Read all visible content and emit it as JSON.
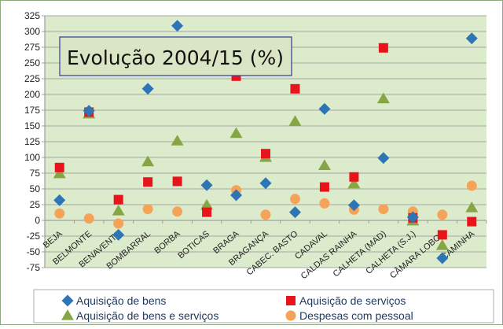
{
  "chart_data": {
    "type": "scatter",
    "title": "Evolução 2004/15 (%)",
    "xlabel": "",
    "ylabel": "",
    "ylim": [
      -75,
      325
    ],
    "y_ticks": [
      -75,
      -50,
      -25,
      0,
      25,
      50,
      75,
      100,
      125,
      150,
      175,
      200,
      225,
      250,
      275,
      300,
      325
    ],
    "grid": true,
    "legend_position": "bottom",
    "categories": [
      "BEJA",
      "BELMONTE",
      "BENAVENTE",
      "BOMBARRAL",
      "BORBA",
      "BOTICAS",
      "BRAGA",
      "BRAGANÇA",
      "CABEC. BASTO",
      "CADAVAL",
      "CALDAS RAINHA",
      "CALHETA (MAD)",
      "CALHETA (S.J.)",
      "CÂMARA LOBOS",
      "CAMINHA"
    ],
    "series": [
      {
        "name": "Aquisição de bens",
        "marker": "diamond",
        "color": "#2E75B6",
        "values": [
          32,
          174,
          -23,
          209,
          309,
          56,
          40,
          59,
          13,
          177,
          24,
          99,
          5,
          -60,
          289
        ]
      },
      {
        "name": "Aquisição de serviços",
        "marker": "square",
        "color": "#E8141B",
        "values": [
          84,
          172,
          33,
          61,
          62,
          13,
          229,
          106,
          209,
          53,
          69,
          274,
          4,
          -23,
          -2
        ]
      },
      {
        "name": "Aquisição de bens e serviços",
        "marker": "triangle",
        "color": "#86A545",
        "values": [
          74,
          169,
          15,
          93,
          126,
          24,
          138,
          100,
          157,
          87,
          58,
          193,
          -1,
          -40,
          20
        ]
      },
      {
        "name": "Despesas com pessoal",
        "marker": "circle",
        "color": "#F6A35A",
        "values": [
          11,
          3,
          -5,
          18,
          14,
          19,
          48,
          9,
          34,
          27,
          17,
          18,
          14,
          9,
          55
        ]
      }
    ]
  },
  "colors": {
    "plot_background": "#DDEBCD",
    "title_box_fill": "#D9E5C5",
    "title_box_border": "#2E3C91",
    "outer_border": "#8FA97F"
  }
}
